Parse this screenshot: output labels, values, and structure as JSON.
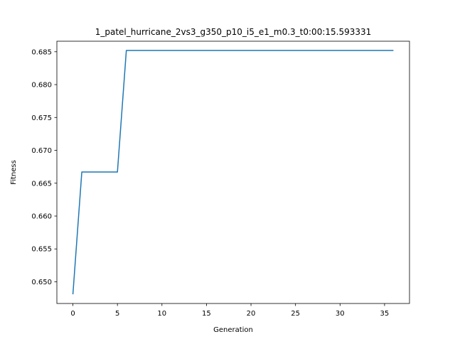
{
  "chart_data": {
    "type": "line",
    "title": "1_patel_hurricane_2vs3_g350_p10_i5_e1_m0.3_t0:00:15.593331",
    "xlabel": "Generation",
    "ylabel": "Fitness",
    "xlim": [
      -1.8,
      37.8
    ],
    "ylim": [
      0.6467,
      0.6866
    ],
    "xticks": [
      0,
      5,
      10,
      15,
      20,
      25,
      30,
      35
    ],
    "yticks": [
      0.65,
      0.655,
      0.66,
      0.665,
      0.67,
      0.675,
      0.68,
      0.685
    ],
    "ytick_labels": [
      "0.650",
      "0.655",
      "0.660",
      "0.665",
      "0.670",
      "0.675",
      "0.680",
      "0.685"
    ],
    "grid": false,
    "series": [
      {
        "color": "#1f77b4",
        "x": [
          0,
          1,
          2,
          3,
          4,
          5,
          6,
          7,
          8,
          9,
          10,
          11,
          12,
          13,
          14,
          15,
          16,
          17,
          18,
          19,
          20,
          21,
          22,
          23,
          24,
          25,
          26,
          27,
          28,
          29,
          30,
          31,
          32,
          33,
          34,
          35,
          36
        ],
        "y": [
          0.6481,
          0.6667,
          0.6667,
          0.6667,
          0.6667,
          0.6667,
          0.6852,
          0.6852,
          0.6852,
          0.6852,
          0.6852,
          0.6852,
          0.6852,
          0.6852,
          0.6852,
          0.6852,
          0.6852,
          0.6852,
          0.6852,
          0.6852,
          0.6852,
          0.6852,
          0.6852,
          0.6852,
          0.6852,
          0.6852,
          0.6852,
          0.6852,
          0.6852,
          0.6852,
          0.6852,
          0.6852,
          0.6852,
          0.6852,
          0.6852,
          0.6852,
          0.6852
        ]
      }
    ]
  }
}
